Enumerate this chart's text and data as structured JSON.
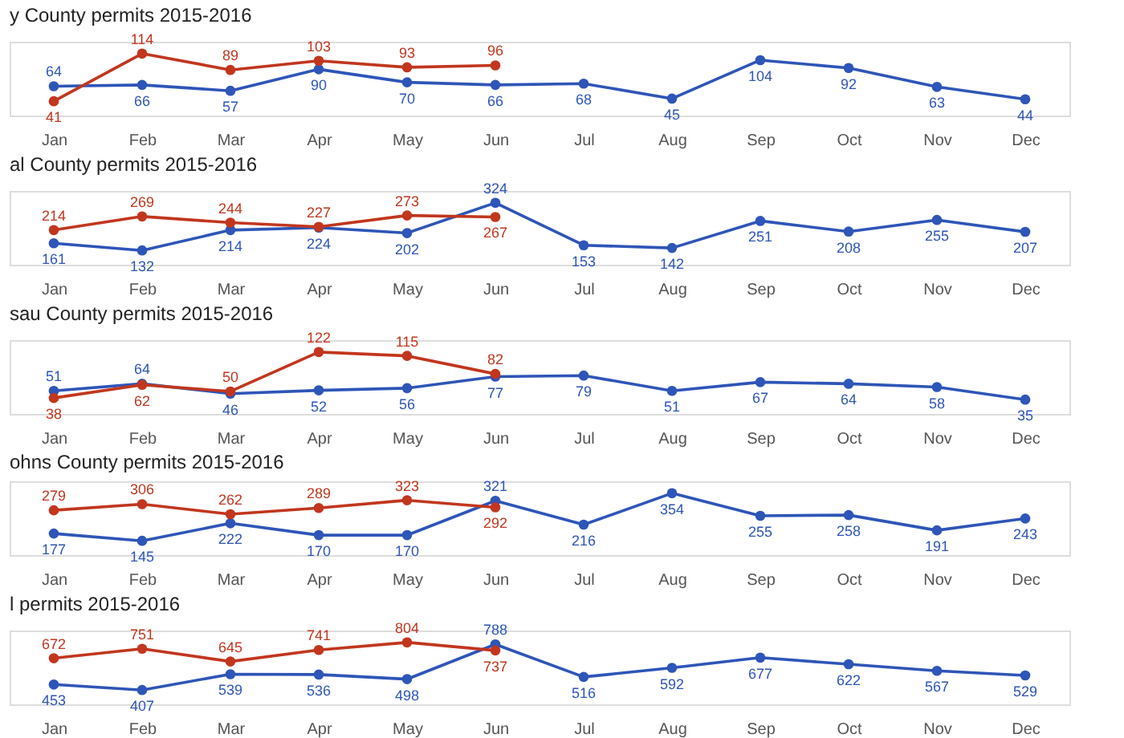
{
  "chart_data": [
    {
      "type": "line",
      "title": "y County permits 2015-2016",
      "categories": [
        "Jan",
        "Feb",
        "Mar",
        "Apr",
        "May",
        "Jun",
        "Jul",
        "Aug",
        "Sep",
        "Oct",
        "Nov",
        "Dec"
      ],
      "series": [
        {
          "color": "#2e55b8",
          "values": [
            64,
            66,
            57,
            90,
            70,
            66,
            68,
            45,
            104,
            92,
            63,
            44
          ]
        },
        {
          "color": "#c2361e",
          "values": [
            41,
            114,
            89,
            103,
            93,
            96,
            null,
            null,
            null,
            null,
            null,
            null
          ]
        }
      ],
      "data_labels": true,
      "tick_labels": "x",
      "marker": "circle"
    },
    {
      "type": "line",
      "title": "al County permits 2015-2016",
      "categories": [
        "Jan",
        "Feb",
        "Mar",
        "Apr",
        "May",
        "Jun",
        "Jul",
        "Aug",
        "Sep",
        "Oct",
        "Nov",
        "Dec"
      ],
      "series": [
        {
          "color": "#2e55b8",
          "values": [
            161,
            132,
            214,
            224,
            202,
            324,
            153,
            142,
            251,
            208,
            255,
            207
          ]
        },
        {
          "color": "#c2361e",
          "values": [
            214,
            269,
            244,
            227,
            273,
            267,
            null,
            null,
            null,
            null,
            null,
            null
          ]
        }
      ],
      "data_labels": true,
      "tick_labels": "x",
      "marker": "circle"
    },
    {
      "type": "line",
      "title": "sau County permits 2015-2016",
      "categories": [
        "Jan",
        "Feb",
        "Mar",
        "Apr",
        "May",
        "Jun",
        "Jul",
        "Aug",
        "Sep",
        "Oct",
        "Nov",
        "Dec"
      ],
      "series": [
        {
          "color": "#2e55b8",
          "values": [
            51,
            64,
            46,
            52,
            56,
            77,
            79,
            51,
            67,
            64,
            58,
            35
          ]
        },
        {
          "color": "#c2361e",
          "values": [
            38,
            62,
            50,
            122,
            115,
            82,
            null,
            null,
            null,
            null,
            null,
            null
          ]
        }
      ],
      "data_labels": true,
      "tick_labels": "x",
      "marker": "circle"
    },
    {
      "type": "line",
      "title": "ohns County permits 2015-2016",
      "categories": [
        "Jan",
        "Feb",
        "Mar",
        "Apr",
        "May",
        "Jun",
        "Jul",
        "Aug",
        "Sep",
        "Oct",
        "Nov",
        "Dec"
      ],
      "series": [
        {
          "color": "#2e55b8",
          "values": [
            177,
            145,
            222,
            170,
            170,
            321,
            216,
            354,
            255,
            258,
            191,
            243
          ]
        },
        {
          "color": "#c2361e",
          "values": [
            279,
            306,
            262,
            289,
            323,
            292,
            null,
            null,
            null,
            null,
            null,
            null
          ]
        }
      ],
      "data_labels": true,
      "tick_labels": "x",
      "marker": "circle"
    },
    {
      "type": "line",
      "title": "l permits 2015-2016",
      "categories": [
        "Jan",
        "Feb",
        "Mar",
        "Apr",
        "May",
        "Jun",
        "Jul",
        "Aug",
        "Sep",
        "Oct",
        "Nov",
        "Dec"
      ],
      "series": [
        {
          "color": "#2e55b8",
          "values": [
            453,
            407,
            539,
            536,
            498,
            788,
            516,
            592,
            677,
            622,
            567,
            529
          ]
        },
        {
          "color": "#c2361e",
          "values": [
            672,
            751,
            645,
            741,
            804,
            737,
            null,
            null,
            null,
            null,
            null,
            null
          ]
        }
      ],
      "data_labels": true,
      "tick_labels": "x",
      "marker": "circle"
    }
  ]
}
